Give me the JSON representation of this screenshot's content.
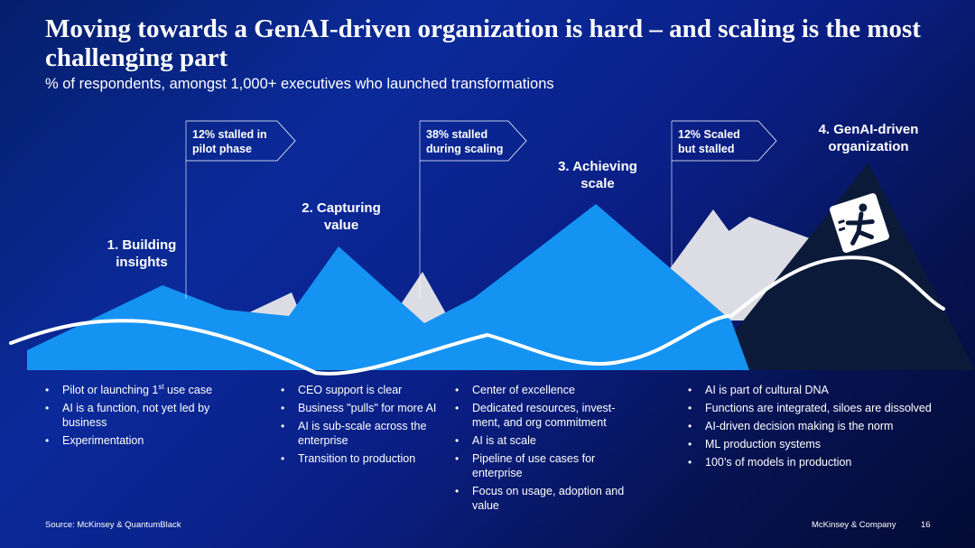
{
  "title": "Moving towards a GenAI-driven organization is hard – and scaling is the most challenging part",
  "subtitle": "% of respondents, amongst 1,000+ executives who launched transformations",
  "stages": [
    {
      "label_line1": "1. Building",
      "label_line2": "insights"
    },
    {
      "label_line1": "2. Capturing",
      "label_line2": "value"
    },
    {
      "label_line1": "3. Achieving",
      "label_line2": "scale"
    },
    {
      "label_line1": "4. GenAI-driven",
      "label_line2": "organization"
    }
  ],
  "callouts": [
    {
      "line1": "12% stalled in",
      "line2": "pilot phase"
    },
    {
      "line1": "38% stalled",
      "line2": "during scaling"
    },
    {
      "line1": "12% Scaled",
      "line2": "but stalled"
    }
  ],
  "columns": [
    {
      "items": [
        {
          "text": "Pilot or launching 1",
          "sup": "st",
          "text_after": " use case"
        },
        {
          "text": "AI is a function, not yet led by business"
        },
        {
          "text": "Experimentation"
        }
      ]
    },
    {
      "items": [
        {
          "text": "CEO support is clear"
        },
        {
          "text": "Business \"pulls\" for more AI"
        },
        {
          "text": "AI is sub-scale across the enterprise"
        },
        {
          "text": "Transition to production"
        }
      ]
    },
    {
      "items": [
        {
          "text": "Center of excellence"
        },
        {
          "text": "Dedicated resources, invest-ment, and org commitment"
        },
        {
          "text": "AI is at scale"
        },
        {
          "text": "Pipeline of use cases for enterprise"
        },
        {
          "text": "Focus on usage, adoption and value"
        }
      ]
    },
    {
      "items": [
        {
          "text": "AI is part of cultural DNA"
        },
        {
          "text": "Functions are integrated, siloes are dissolved"
        },
        {
          "text": "AI-driven decision making is the norm"
        },
        {
          "text": "ML production systems"
        },
        {
          "text": "100’s of models in production"
        }
      ]
    }
  ],
  "footer": {
    "source": "Source: McKinsey & QuantumBlack",
    "brand": "McKinsey & Company",
    "page_number": "16"
  },
  "icons": {
    "climber": "running-climber-icon"
  },
  "colors": {
    "mountain_blue": "#1593f2",
    "mountain_gray": "#dcdde4",
    "mountain_dark": "#0b1a38",
    "path_line": "#ffffff"
  }
}
